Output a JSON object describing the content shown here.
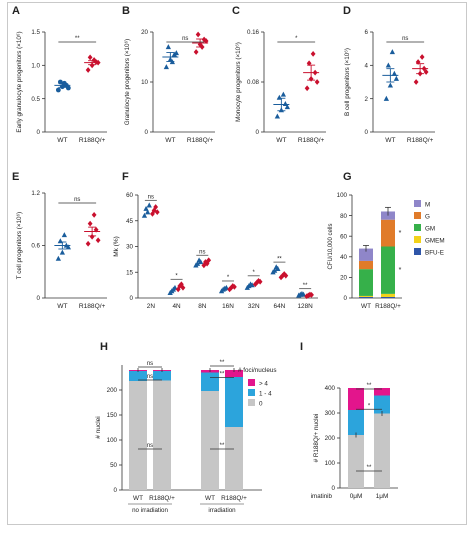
{
  "chart_data": [
    {
      "panel": "A",
      "type": "scatter",
      "ylabel": "Early granulocyte progenitors (×10⁶)",
      "ylim": [
        0,
        1.5
      ],
      "yticks": [
        0,
        0.5,
        1.0,
        1.5
      ],
      "yticklabels": [
        "0",
        "0.5",
        "1.0",
        "1.5"
      ],
      "categories": [
        "WT",
        "R188Q/+"
      ],
      "series": [
        {
          "group": "WT",
          "color": "#1a5d9c",
          "marker": "circle",
          "values": [
            0.63,
            0.68,
            0.7,
            0.75,
            0.73,
            0.66
          ],
          "mean": 0.7,
          "sem": 0.03
        },
        {
          "group": "R188Q/+",
          "color": "#c9102e",
          "marker": "diamond",
          "values": [
            0.93,
            1.0,
            1.05,
            1.12,
            1.08,
            1.04
          ],
          "mean": 1.04,
          "sem": 0.03
        }
      ],
      "significance": [
        {
          "between": [
            "WT",
            "R188Q/+"
          ],
          "label": "**"
        }
      ]
    },
    {
      "panel": "B",
      "type": "scatter",
      "ylabel": "Granulocyte progenitors (×10⁶)",
      "ylim": [
        0,
        20
      ],
      "yticks": [
        0,
        10,
        20
      ],
      "yticklabels": [
        "0",
        "10",
        "20"
      ],
      "categories": [
        "WT",
        "R188Q/+"
      ],
      "series": [
        {
          "group": "WT",
          "color": "#1a5d9c",
          "marker": "triangle",
          "values": [
            13.0,
            14.5,
            15.5,
            17.0,
            14.0,
            15.8
          ],
          "mean": 15.0,
          "sem": 0.9
        },
        {
          "group": "R188Q/+",
          "color": "#c9102e",
          "marker": "diamond",
          "values": [
            16.0,
            17.5,
            18.5,
            19.5,
            17.0,
            18.2
          ],
          "mean": 17.8,
          "sem": 0.8
        }
      ],
      "significance": [
        {
          "between": [
            "WT",
            "R188Q/+"
          ],
          "label": "ns"
        }
      ]
    },
    {
      "panel": "C",
      "type": "scatter",
      "ylabel": "Monocyte progenitors (×10⁶)",
      "ylim": [
        0,
        0.16
      ],
      "yticks": [
        0,
        0.08,
        0.16
      ],
      "yticklabels": [
        "0",
        "0.08",
        "0.16"
      ],
      "categories": [
        "WT",
        "R188Q/+"
      ],
      "series": [
        {
          "group": "WT",
          "color": "#1a5d9c",
          "marker": "triangle",
          "values": [
            0.025,
            0.035,
            0.045,
            0.055,
            0.06,
            0.04
          ],
          "mean": 0.044,
          "sem": 0.01
        },
        {
          "group": "R188Q/+",
          "color": "#c9102e",
          "marker": "diamond",
          "values": [
            0.07,
            0.085,
            0.095,
            0.11,
            0.125,
            0.08
          ],
          "mean": 0.095,
          "sem": 0.012
        }
      ],
      "significance": [
        {
          "between": [
            "WT",
            "R188Q/+"
          ],
          "label": "*"
        }
      ]
    },
    {
      "panel": "D",
      "type": "scatter",
      "ylabel": "B cell progenitors (×10⁶)",
      "ylim": [
        0,
        6
      ],
      "yticks": [
        0,
        2,
        4,
        6
      ],
      "yticklabels": [
        "0",
        "2",
        "4",
        "6"
      ],
      "categories": [
        "WT",
        "R188Q/+"
      ],
      "series": [
        {
          "group": "WT",
          "color": "#1a5d9c",
          "marker": "triangle",
          "values": [
            2.0,
            2.8,
            3.5,
            4.0,
            4.8,
            3.2
          ],
          "mean": 3.4,
          "sem": 0.4
        },
        {
          "group": "R188Q/+",
          "color": "#c9102e",
          "marker": "diamond",
          "values": [
            3.0,
            3.5,
            3.8,
            4.2,
            4.5,
            3.6
          ],
          "mean": 3.8,
          "sem": 0.3
        }
      ],
      "significance": [
        {
          "between": [
            "WT",
            "R188Q/+"
          ],
          "label": "ns"
        }
      ]
    },
    {
      "panel": "E",
      "type": "scatter",
      "ylabel": "T cell progenitors (×10⁶)",
      "ylim": [
        0,
        1.2
      ],
      "yticks": [
        0,
        0.6,
        1.2
      ],
      "yticklabels": [
        "0",
        "0.6",
        "1.2"
      ],
      "categories": [
        "WT",
        "R188Q/+"
      ],
      "series": [
        {
          "group": "WT",
          "color": "#1a5d9c",
          "marker": "triangle",
          "values": [
            0.45,
            0.52,
            0.6,
            0.65,
            0.72,
            0.58
          ],
          "mean": 0.6,
          "sem": 0.04
        },
        {
          "group": "R188Q/+",
          "color": "#c9102e",
          "marker": "diamond",
          "values": [
            0.62,
            0.7,
            0.78,
            0.85,
            0.95,
            0.66
          ],
          "mean": 0.76,
          "sem": 0.05
        }
      ],
      "significance": [
        {
          "between": [
            "WT",
            "R188Q/+"
          ],
          "label": "ns"
        }
      ]
    },
    {
      "panel": "F",
      "type": "scatter",
      "ylabel": "Mk (%)",
      "ylim": [
        0,
        60
      ],
      "yticks": [
        0,
        15,
        30,
        45,
        60
      ],
      "yticklabels": [
        "0",
        "15",
        "30",
        "45",
        "60"
      ],
      "categories": [
        "2N",
        "4N",
        "8N",
        "16N",
        "32N",
        "64N",
        "128N"
      ],
      "series": [
        {
          "group": "WT",
          "color": "#1a5d9c",
          "marker": "triangle",
          "values": [
            [
              48,
              52,
              50,
              54
            ],
            [
              3,
              4,
              5,
              6
            ],
            [
              19,
              20,
              22,
              21
            ],
            [
              4,
              5,
              5.5,
              6
            ],
            [
              6,
              7,
              8,
              7.5
            ],
            [
              15,
              16,
              18,
              17
            ],
            [
              1.5,
              2,
              2.5,
              2
            ]
          ]
        },
        {
          "group": "R188Q/+",
          "color": "#c9102e",
          "marker": "diamond",
          "values": [
            [
              49,
              51,
              53,
              50
            ],
            [
              5,
              7,
              8,
              6
            ],
            [
              19,
              21,
              20,
              22
            ],
            [
              5,
              6,
              7,
              6.5
            ],
            [
              8,
              9,
              10,
              9.5
            ],
            [
              12,
              13,
              14,
              13
            ],
            [
              1,
              1.5,
              2,
              1.8
            ]
          ]
        }
      ],
      "significance": [
        {
          "category": "2N",
          "label": "ns"
        },
        {
          "category": "4N",
          "label": "*"
        },
        {
          "category": "8N",
          "label": "ns"
        },
        {
          "category": "16N",
          "label": "*"
        },
        {
          "category": "32N",
          "label": "*"
        },
        {
          "category": "64N",
          "label": "**"
        },
        {
          "category": "128N",
          "label": "**"
        }
      ]
    },
    {
      "panel": "G",
      "type": "bar",
      "stacked": true,
      "ylabel": "CFU/10,000 cells",
      "ylim": [
        0,
        100
      ],
      "yticks": [
        0,
        20,
        40,
        60,
        80,
        100
      ],
      "yticklabels": [
        "0",
        "20",
        "40",
        "60",
        "80",
        "100"
      ],
      "categories": [
        "WT",
        "R188Q/+"
      ],
      "series": [
        {
          "name": "BFU-E",
          "color": "#2e55a8",
          "values": [
            1,
            1
          ]
        },
        {
          "name": "GMEM",
          "color": "#f2d21a",
          "values": [
            1,
            3
          ]
        },
        {
          "name": "GM",
          "color": "#36b04a",
          "values": [
            26,
            46
          ]
        },
        {
          "name": "G",
          "color": "#e07b2a",
          "values": [
            8,
            26
          ]
        },
        {
          "name": "M",
          "color": "#8f86c9",
          "values": [
            12,
            8
          ]
        }
      ],
      "errors": {
        "WT": 3,
        "R188Q/+": 4
      },
      "significance": [
        {
          "series": "G",
          "label": "*"
        },
        {
          "series": "GM",
          "label": "*"
        }
      ]
    },
    {
      "panel": "H",
      "type": "bar",
      "stacked": true,
      "ylabel": "# nuclei",
      "ylim": [
        0,
        250
      ],
      "yticks": [
        0,
        50,
        100,
        150,
        200
      ],
      "yticklabels": [
        "0",
        "50",
        "100",
        "150",
        "200"
      ],
      "categories": [
        "WT",
        "R188Q/+",
        "WT",
        "R188Q/+"
      ],
      "group_labels": [
        "no irradiation",
        "irradiation"
      ],
      "legend_title": "# foci/nucleus",
      "series": [
        {
          "name": "0",
          "color": "#c6c6c6",
          "values": [
            218,
            219,
            198,
            126
          ]
        },
        {
          "name": "1 - 4",
          "color": "#2ca4dc",
          "values": [
            20,
            19,
            37,
            100
          ]
        },
        {
          "name": "> 4",
          "color": "#e3158c",
          "values": [
            2,
            2,
            5,
            14
          ]
        }
      ],
      "significance_labels": [
        "ns",
        "ns",
        "ns",
        "**",
        "**",
        "**"
      ]
    },
    {
      "panel": "I",
      "type": "bar",
      "stacked": true,
      "ylabel": "# R188Q/+ nuclei",
      "ylim": [
        0,
        400
      ],
      "yticks": [
        0,
        100,
        200,
        300,
        400
      ],
      "yticklabels": [
        "0",
        "100",
        "200",
        "300",
        "400"
      ],
      "categories": [
        "0μM",
        "1μM"
      ],
      "xlabel": "imatinib",
      "series": [
        {
          "name": "0",
          "color": "#c6c6c6",
          "values": [
            212,
            298
          ]
        },
        {
          "name": "1 - 4",
          "color": "#2ca4dc",
          "values": [
            100,
            72
          ]
        },
        {
          "name": "> 4",
          "color": "#e3158c",
          "values": [
            88,
            30
          ]
        }
      ],
      "significance_labels": [
        "**",
        "*",
        "**"
      ]
    }
  ]
}
